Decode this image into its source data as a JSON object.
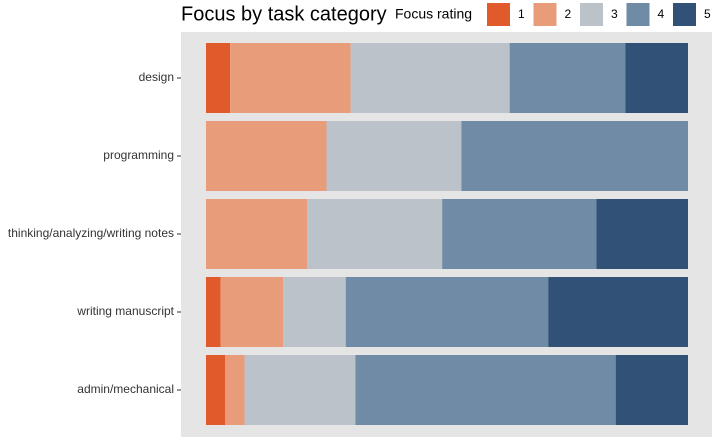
{
  "chart_data": {
    "type": "stacked-bar-horizontal",
    "title": "Focus by task category",
    "legend_title": "Focus rating",
    "categories": [
      "design",
      "programming",
      "thinking/analyzing/writing notes",
      "writing manuscript",
      "admin/mechanical"
    ],
    "xlim": [
      0,
      1
    ],
    "series": [
      {
        "name": "1",
        "color": "#e05a2b",
        "values": [
          0.05,
          0,
          0,
          0.03,
          0.04
        ]
      },
      {
        "name": "2",
        "color": "#e99c79",
        "values": [
          0.25,
          0.25,
          0.21,
          0.13,
          0.04
        ]
      },
      {
        "name": "3",
        "color": "#bbc2c9",
        "values": [
          0.33,
          0.28,
          0.28,
          0.13,
          0.23
        ]
      },
      {
        "name": "4",
        "color": "#6f8ba5",
        "values": [
          0.24,
          0.47,
          0.32,
          0.42,
          0.54
        ]
      },
      {
        "name": "5",
        "color": "#325177",
        "values": [
          0.13,
          0,
          0.19,
          0.29,
          0.15
        ]
      }
    ]
  }
}
